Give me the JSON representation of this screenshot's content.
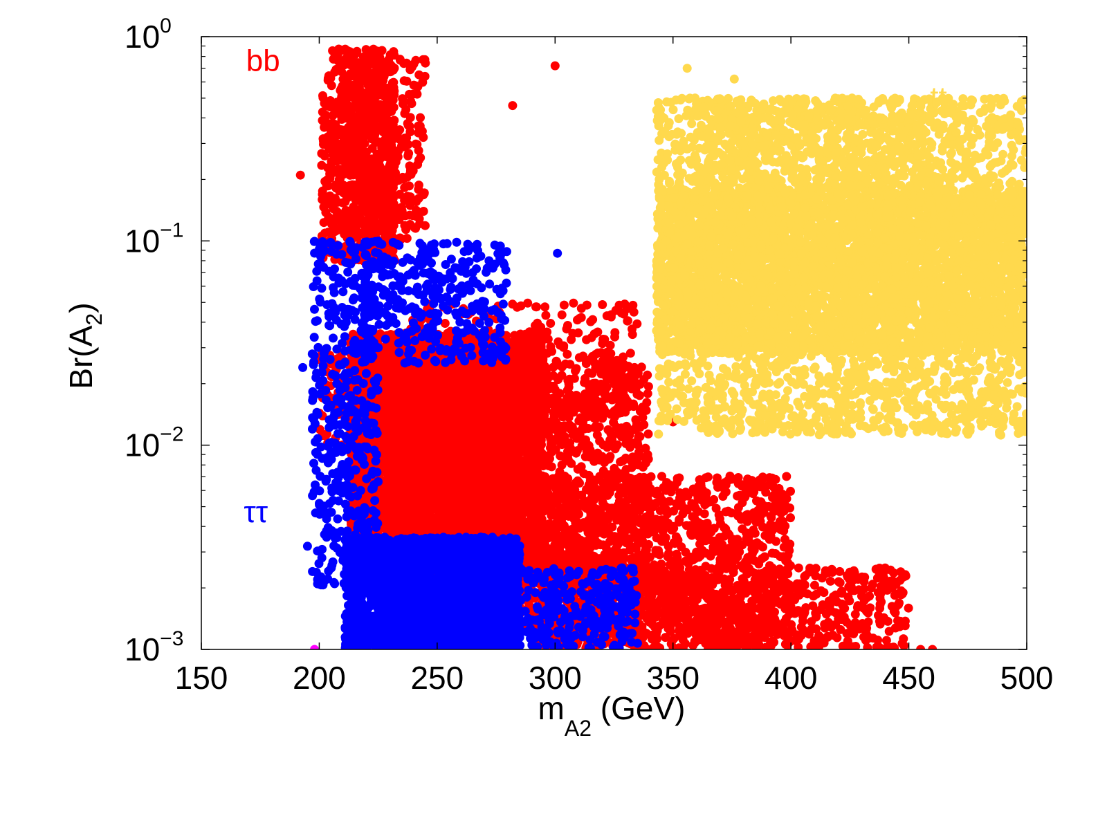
{
  "chart_data": {
    "type": "scatter",
    "title": "",
    "xlabel": "m",
    "xlabel_sub": "A2",
    "xlabel_unit": " (GeV)",
    "ylabel": "Br(A",
    "ylabel_sub": "2",
    "ylabel_close": ")",
    "xlim": [
      150,
      500
    ],
    "ylim": [
      0.001,
      1
    ],
    "yscale": "log",
    "grid": false,
    "x_ticks": [
      150,
      200,
      250,
      300,
      350,
      400,
      450,
      500
    ],
    "x_tick_labels": [
      "150",
      "200",
      "250",
      "300",
      "350",
      "400",
      "450",
      "500"
    ],
    "y_ticks": [
      0.001,
      0.01,
      0.1,
      1
    ],
    "y_tick_bases": [
      "10",
      "10",
      "10",
      "10"
    ],
    "y_tick_exps": [
      "−3",
      "−2",
      "−1",
      "0"
    ],
    "series_labels": [
      {
        "name": "bb",
        "text": "bb",
        "color": "#ff0000",
        "x": 169,
        "y": 0.68
      },
      {
        "name": "tt",
        "text": "tt",
        "color": "#ffd94d",
        "x": 459,
        "y": 0.45
      },
      {
        "name": "tautau",
        "text": "ττ",
        "color": "#0000ff",
        "x": 168,
        "y": 0.0042
      }
    ],
    "series": [
      {
        "name": "bb",
        "color": "#ff0000",
        "clusters": [
          {
            "x": [
              201,
              232
            ],
            "logy": [
              -1.1,
              -0.06
            ],
            "n": 700
          },
          {
            "x": [
              210,
              245
            ],
            "logy": [
              -1.0,
              -0.1
            ],
            "n": 350
          },
          {
            "x": [
              213,
              295
            ],
            "logy": [
              -2.65,
              -1.45
            ],
            "n": 4200
          },
          {
            "x": [
              230,
              285
            ],
            "logy": [
              -2.4,
              -1.5
            ],
            "n": 2200
          },
          {
            "x": [
              250,
              340
            ],
            "logy": [
              -2.95,
              -1.6
            ],
            "n": 1700
          },
          {
            "x": [
              290,
              400
            ],
            "logy": [
              -3.0,
              -2.15
            ],
            "n": 1300
          },
          {
            "x": [
              330,
              450
            ],
            "logy": [
              -3.0,
              -2.6
            ],
            "n": 600
          },
          {
            "x": [
              235,
              335
            ],
            "logy": [
              -2.0,
              -1.3
            ],
            "n": 400
          },
          {
            "x": [
              200,
              215
            ],
            "logy": [
              -2.0,
              -1.5
            ],
            "n": 80
          }
        ],
        "points": [
          [
            300,
            0.72
          ],
          [
            282,
            0.46
          ],
          [
            192,
            0.21
          ],
          [
            455,
            0.001
          ],
          [
            460,
            0.001
          ],
          [
            414,
            0.0019
          ],
          [
            437,
            0.0019
          ],
          [
            350,
            0.013
          ],
          [
            322,
            0.043
          ]
        ]
      },
      {
        "name": "tautau",
        "color": "#0000ff",
        "clusters": [
          {
            "x": [
              211,
              285
            ],
            "logy": [
              -3.0,
              -2.45
            ],
            "n": 2400
          },
          {
            "x": [
              197,
              225
            ],
            "logy": [
              -2.7,
              -1.0
            ],
            "n": 450
          },
          {
            "x": [
              218,
              280
            ],
            "logy": [
              -1.6,
              -1.0
            ],
            "n": 350
          },
          {
            "x": [
              280,
              335
            ],
            "logy": [
              -3.0,
              -2.6
            ],
            "n": 300
          }
        ],
        "points": [
          [
            193,
            0.024
          ],
          [
            195,
            0.0032
          ],
          [
            301,
            0.087
          ],
          [
            325,
            0.001
          ]
        ]
      },
      {
        "name": "tt",
        "color": "#ffd94d",
        "clusters": [
          {
            "x": [
              343,
              500
            ],
            "logy": [
              -1.95,
              -0.3
            ],
            "n": 3200
          },
          {
            "x": [
              343,
              500
            ],
            "logy": [
              -1.55,
              -0.75
            ],
            "n": 3600
          },
          {
            "x": [
              360,
              460
            ],
            "logy": [
              -0.75,
              -0.3
            ],
            "n": 400
          }
        ],
        "points": [
          [
            356,
            0.7
          ],
          [
            376,
            0.62
          ],
          [
            497,
            0.0115
          ],
          [
            489,
            0.0112
          ],
          [
            418,
            0.32
          ],
          [
            497,
            0.31
          ]
        ]
      },
      {
        "name": "other",
        "color": "#ff00ff",
        "clusters": [],
        "points": [
          [
            198,
            0.001
          ]
        ]
      }
    ]
  }
}
